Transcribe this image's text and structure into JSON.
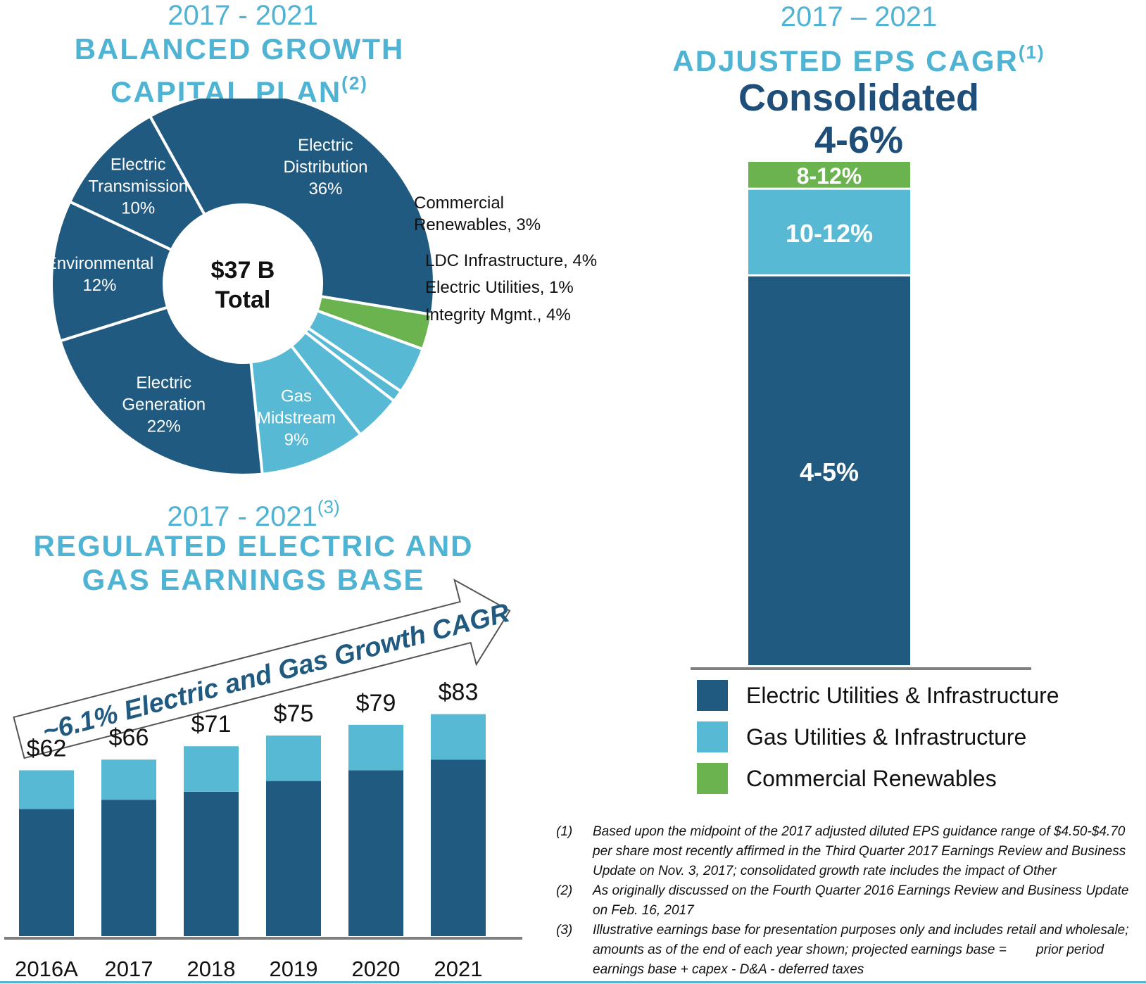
{
  "colors": {
    "dark_blue": "#215a80",
    "light_blue": "#58b9d4",
    "green": "#6bb34f",
    "title_blue": "#4fb3d3",
    "navy_text": "#1f4e79"
  },
  "capital_plan": {
    "years": "2017 - 2021",
    "title_line1": "BALANCED GROWTH",
    "title_line2": "CAPITAL PLAN",
    "title_sup": "(2)",
    "center_line1": "$37 B",
    "center_line2": "Total"
  },
  "eps_panel": {
    "years": "2017 – 2021",
    "title": "ADJUSTED EPS CAGR",
    "title_sup": "(1)",
    "consolidated_label": "Consolidated",
    "consolidated_value": "4-6%"
  },
  "earnings_base": {
    "years": "2017 - 2021",
    "years_sup": "(3)",
    "title_line1": "REGULATED ELECTRIC AND",
    "title_line2": "GAS EARNINGS BASE",
    "arrow_text": "~6.1% Electric and Gas Growth CAGR"
  },
  "legend": [
    {
      "label": "Electric Utilities & Infrastructure",
      "color": "#215a80"
    },
    {
      "label": "Gas Utilities & Infrastructure",
      "color": "#58b9d4"
    },
    {
      "label": "Commercial Renewables",
      "color": "#6bb34f"
    }
  ],
  "footnotes": [
    {
      "num": "(1)",
      "text": "Based upon the midpoint of the 2017 adjusted diluted EPS guidance range of $4.50-$4.70 per share most recently affirmed in the Third Quarter 2017 Earnings Review and Business Update on Nov. 3, 2017; consolidated growth rate includes the impact of Other"
    },
    {
      "num": "(2)",
      "text": "As originally discussed on the Fourth Quarter 2016 Earnings Review and Business Update on Feb. 16, 2017"
    },
    {
      "num": "(3)",
      "text": "Illustrative earnings base for presentation purposes only and includes retail and wholesale; amounts as of the end of each year shown; projected earnings base =        prior period earnings base + capex - D&A - deferred taxes"
    }
  ],
  "chart_data": [
    {
      "type": "pie",
      "title": "BALANCED GROWTH CAPITAL PLAN",
      "total_label": "$37 B Total",
      "slices": [
        {
          "label": "Electric Distribution",
          "lines": [
            "Electric",
            "Distribution",
            "36%"
          ],
          "value": 36,
          "color": "#215a80",
          "text_color": "#ffffff",
          "outside": false
        },
        {
          "label": "Commercial Renewables",
          "lines": [
            "Commercial",
            "Renewables, 3%"
          ],
          "value": 3,
          "color": "#6bb34f",
          "text_color": "#111111",
          "outside": true
        },
        {
          "label": "LDC Infrastructure",
          "lines": [
            "LDC Infrastructure, 4%"
          ],
          "value": 4,
          "color": "#58b9d4",
          "text_color": "#111111",
          "outside": true
        },
        {
          "label": "Electric Utilities",
          "lines": [
            "Electric Utilities, 1%"
          ],
          "value": 1,
          "color": "#58b9d4",
          "text_color": "#111111",
          "outside": true
        },
        {
          "label": "Integrity Mgmt.",
          "lines": [
            "Integrity Mgmt., 4%"
          ],
          "value": 4,
          "color": "#58b9d4",
          "text_color": "#111111",
          "outside": true
        },
        {
          "label": "Gas Midstream",
          "lines": [
            "Gas",
            "Midstream",
            "9%"
          ],
          "value": 9,
          "color": "#58b9d4",
          "text_color": "#ffffff",
          "outside": false
        },
        {
          "label": "Electric Generation",
          "lines": [
            "Electric",
            "Generation",
            "22%"
          ],
          "value": 22,
          "color": "#215a80",
          "text_color": "#ffffff",
          "outside": false
        },
        {
          "label": "Environmental",
          "lines": [
            "Environmental",
            "12%"
          ],
          "value": 12,
          "color": "#215a80",
          "text_color": "#ffffff",
          "outside": false
        },
        {
          "label": "Electric Transmission",
          "lines": [
            "Electric",
            "Transmission",
            "10%"
          ],
          "value": 10,
          "color": "#215a80",
          "text_color": "#ffffff",
          "outside": false
        }
      ]
    },
    {
      "type": "bar",
      "stacked": true,
      "title": "REGULATED ELECTRIC AND GAS EARNINGS BASE",
      "categories": [
        "2016A",
        "2017",
        "2018",
        "2019",
        "2020",
        "2021"
      ],
      "totals": [
        62,
        66,
        71,
        75,
        79,
        83
      ],
      "total_labels": [
        "$62",
        "$66",
        "$71",
        "$75",
        "$79",
        "$83"
      ],
      "series": [
        {
          "values": [
            47.5,
            51,
            54,
            58,
            62,
            66
          ],
          "color": "#215a80"
        },
        {
          "values": [
            14.5,
            15,
            17,
            17,
            17,
            17
          ],
          "color": "#58b9d4"
        }
      ],
      "ylim": [
        0,
        85
      ]
    },
    {
      "type": "bar",
      "stacked": true,
      "title": "ADJUSTED EPS CAGR",
      "categories": [
        "Consolidated"
      ],
      "series": [
        {
          "name": "Electric Utilities & Infrastructure",
          "value_label": "4-5%",
          "weight": 70,
          "color": "#215a80"
        },
        {
          "name": "Gas Utilities & Infrastructure",
          "value_label": "10-12%",
          "weight": 15.5,
          "color": "#58b9d4"
        },
        {
          "name": "Commercial Renewables",
          "value_label": "8-12%",
          "weight": 5,
          "color": "#6bb34f"
        }
      ]
    }
  ]
}
